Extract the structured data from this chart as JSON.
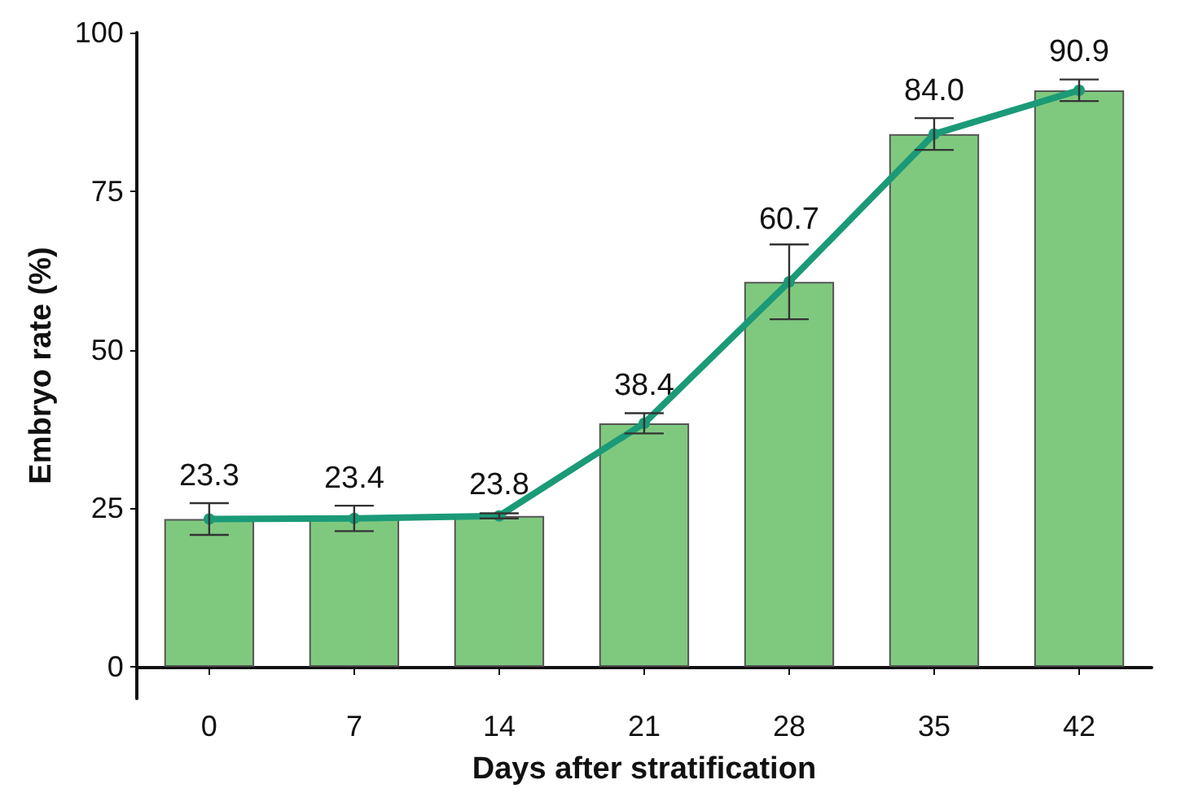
{
  "chart_data": {
    "type": "bar",
    "xlabel": "Days after stratification",
    "ylabel": "Embryo rate (%)",
    "categories": [
      "0",
      "7",
      "14",
      "21",
      "28",
      "35",
      "42"
    ],
    "series": [
      {
        "color": "#7fc97f",
        "values": [
          23.3,
          23.4,
          23.8,
          38.4,
          60.7,
          84.0,
          90.9
        ],
        "errors": [
          2.5,
          2.0,
          0.4,
          1.6,
          5.9,
          2.5,
          1.7
        ],
        "value_labels": [
          "23.3",
          "23.4",
          "23.8",
          "38.4",
          "60.7",
          "84.0",
          "90.9"
        ]
      },
      {
        "type": "line",
        "color": "#1b9a77",
        "values": [
          23.3,
          23.4,
          23.8,
          38.4,
          60.7,
          84.0,
          90.9
        ],
        "marker": "circle"
      }
    ],
    "ylim": [
      -5,
      100
    ],
    "yticks": [
      0,
      25,
      50,
      75,
      100
    ],
    "grid": false
  }
}
